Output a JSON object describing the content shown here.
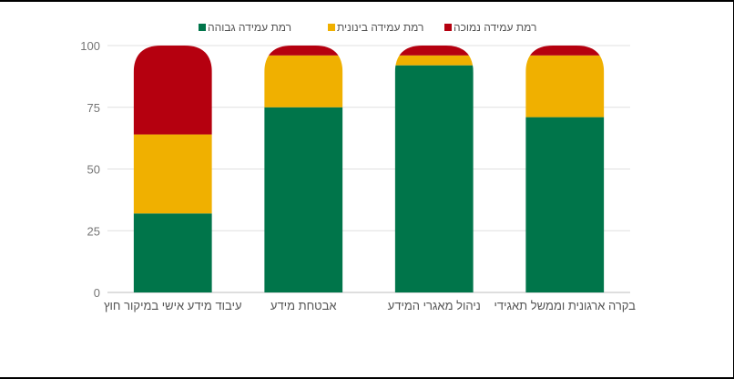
{
  "chart_data": {
    "type": "bar",
    "stacked": true,
    "categories": [
      "עיבוד מידע אישי במיקור חוץ",
      "אבטחת מידע",
      "ניהול מאגרי המידע",
      "בקרה ארגונית וממשל תאגידי"
    ],
    "series": [
      {
        "name": "רמת עמידה גבוהה",
        "color": "#00754a",
        "values": [
          32,
          75,
          92,
          71
        ]
      },
      {
        "name": "רמת עמידה בינונית",
        "color": "#f0b000",
        "values": [
          32,
          21,
          4,
          25
        ]
      },
      {
        "name": "רמת עמידה נמוכה",
        "color": "#b5000f",
        "values": [
          36,
          4,
          4,
          4
        ]
      }
    ],
    "ylim": [
      0,
      100
    ],
    "yticks": [
      0,
      25,
      50,
      75,
      100
    ],
    "grid": true,
    "legend": "top-center",
    "rounded_top": true
  }
}
